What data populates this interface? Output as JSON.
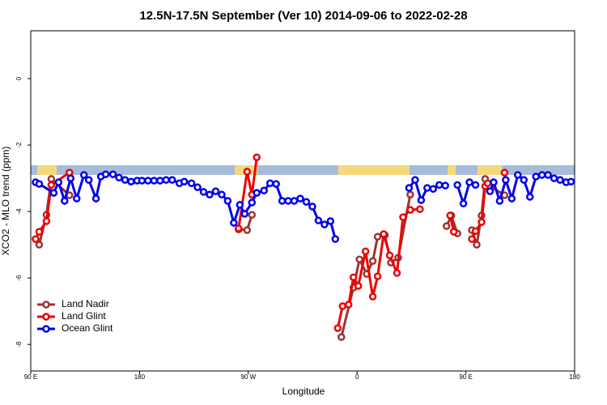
{
  "chart_data": {
    "type": "line",
    "title": "12.5N-17.5N September (Ver 10)   2014-09-06 to 2022-02-28",
    "x_label": "Longitude",
    "y_label": "XCO2 - MLO trend (ppm)",
    "xlim": [
      90,
      540
    ],
    "xticks": [
      {
        "value": 90,
        "label": "90 E"
      },
      {
        "value": 180,
        "label": "180"
      },
      {
        "value": 270,
        "label": "90 W"
      },
      {
        "value": 360,
        "label": "0"
      },
      {
        "value": 450,
        "label": "90 E"
      },
      {
        "value": 540,
        "label": "180"
      }
    ],
    "ylim": [
      -8.8,
      1.44
    ],
    "yticks": [
      -8,
      -6,
      -4,
      -2,
      0
    ],
    "legend": "bottomleft",
    "series": [
      {
        "name": "Land Nadir",
        "color": "#9b3535",
        "x": [
          97,
          103,
          107,
          122,
          null,
          262,
          269,
          273,
          null,
          347,
          357,
          362,
          368,
          373,
          377,
          383,
          388,
          394,
          404,
          null,
          434,
          438,
          443,
          null,
          455,
          459,
          463,
          466,
          470,
          482
        ],
        "values": [
          -5.0,
          -4.1,
          -3.02,
          -3.51,
          null,
          -4.54,
          -4.56,
          -4.1,
          null,
          -7.78,
          -6.29,
          -5.44,
          -5.88,
          -5.49,
          -4.76,
          -4.71,
          -5.54,
          -5.39,
          -3.49,
          null,
          -4.44,
          -4.12,
          -4.66,
          null,
          -4.56,
          -5.0,
          -4.12,
          -3.02,
          -3.24,
          -3.51
        ]
      },
      {
        "name": "Land Glint",
        "color": "#ee0000",
        "x": [
          94,
          97,
          103,
          107,
          122,
          null,
          262,
          269,
          273,
          277,
          null,
          344,
          348,
          353,
          357,
          361,
          367,
          373,
          377,
          382,
          387,
          393,
          398,
          404,
          412,
          null,
          437,
          440,
          null,
          455,
          458,
          463,
          466,
          468,
          null,
          482
        ],
        "values": [
          -4.83,
          -4.61,
          -4.29,
          -3.2,
          -2.83,
          null,
          -4.51,
          -2.8,
          -3.49,
          -2.37,
          null,
          -7.51,
          -6.85,
          -6.8,
          -5.98,
          -6.24,
          -5.2,
          -6.56,
          -5.95,
          -4.68,
          -5.32,
          -5.85,
          -4.17,
          -3.95,
          -3.93,
          null,
          -4.12,
          -4.61,
          null,
          -4.83,
          -4.59,
          -4.32,
          -3.24,
          -3.15,
          null,
          -2.83
        ]
      },
      {
        "name": "Ocean Glint",
        "color": "#0000ee",
        "x": [
          94,
          97,
          109,
          113,
          118,
          123,
          128,
          134,
          138,
          144,
          148,
          152,
          158,
          163,
          168,
          173,
          178,
          182,
          187,
          192,
          197,
          202,
          207,
          213,
          217,
          223,
          228,
          233,
          238,
          243,
          248,
          253,
          258,
          263,
          267,
          273,
          277,
          283,
          288,
          293,
          298,
          303,
          308,
          313,
          318,
          323,
          328,
          333,
          338,
          342,
          null,
          403,
          408,
          413,
          418,
          423,
          428,
          433,
          null,
          443,
          448,
          453,
          458,
          null,
          470,
          473,
          478,
          483,
          488,
          493,
          498,
          503,
          508,
          513,
          518,
          523,
          528,
          533,
          537
        ],
        "values": [
          -3.12,
          -3.17,
          -3.44,
          -3.12,
          -3.68,
          -3.0,
          -3.61,
          -2.9,
          -3.05,
          -3.61,
          -2.95,
          -2.88,
          -2.88,
          -2.98,
          -3.05,
          -3.1,
          -3.07,
          -3.07,
          -3.07,
          -3.07,
          -3.07,
          -3.05,
          -3.05,
          -3.15,
          -3.1,
          -3.15,
          -3.27,
          -3.41,
          -3.49,
          -3.39,
          -3.49,
          -3.68,
          -4.34,
          -3.8,
          -4.07,
          -3.73,
          -3.44,
          -3.37,
          -3.15,
          -3.17,
          -3.68,
          -3.68,
          -3.68,
          -3.61,
          -3.71,
          -3.85,
          -4.27,
          -4.39,
          -4.29,
          -4.83,
          null,
          -3.29,
          -3.05,
          -3.66,
          -3.29,
          -3.32,
          -3.2,
          -3.22,
          null,
          -3.2,
          -3.76,
          -3.12,
          -3.2,
          null,
          -3.39,
          -3.12,
          -3.68,
          -3.05,
          -3.61,
          -2.9,
          -3.05,
          -3.56,
          -2.95,
          -2.9,
          -2.9,
          -3.0,
          -3.05,
          -3.12,
          -3.1
        ]
      }
    ]
  }
}
